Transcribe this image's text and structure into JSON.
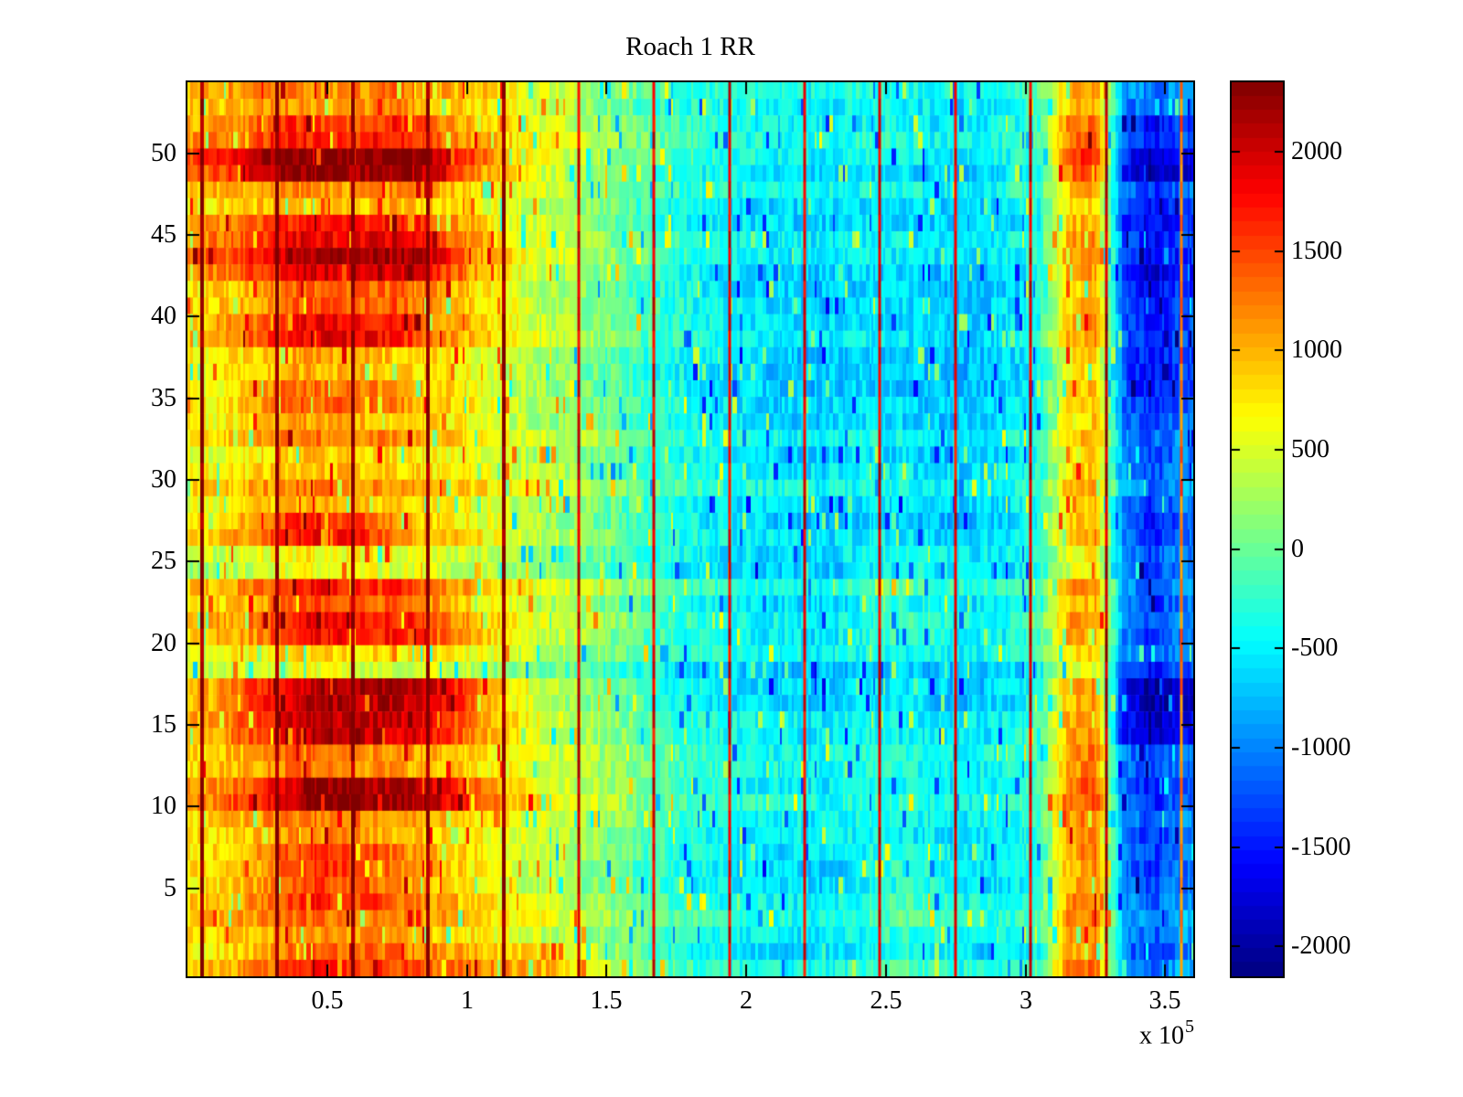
{
  "figure": {
    "window_background": "#ffffff",
    "axis_color": "#000000"
  },
  "chart_data": {
    "type": "heatmap",
    "title": "Roach 1 RR",
    "colormap": "jet",
    "x_axis": {
      "range": [
        0,
        360000
      ],
      "tick_values": [
        50000,
        100000,
        150000,
        200000,
        250000,
        300000,
        350000
      ],
      "tick_labels": [
        "0.5",
        "1",
        "1.5",
        "2",
        "2.5",
        "3",
        "3.5"
      ],
      "multiplier_label": "x 10",
      "multiplier_exponent": "5"
    },
    "y_axis": {
      "rows": 54,
      "tick_values": [
        50,
        45,
        40,
        35,
        30,
        25,
        20,
        15,
        10,
        5
      ],
      "tick_labels": [
        "50",
        "45",
        "40",
        "35",
        "30",
        "25",
        "20",
        "15",
        "10",
        "5"
      ]
    },
    "color_axis": {
      "min": -2150,
      "max": 2350,
      "levels": 64,
      "tick_values": [
        2000,
        1500,
        1000,
        500,
        0,
        -500,
        -1000,
        -1500,
        -2000
      ],
      "tick_labels": [
        "2000",
        "1500",
        "1000",
        "500",
        "0",
        "-500",
        "-1000",
        "-1500",
        "-2000"
      ]
    },
    "grid_info": {
      "bands_top_to_bottom": 27,
      "rows_per_band": 2,
      "cols": 36,
      "col_width_x": 10000
    },
    "grid": [
      [
        900,
        1000,
        1100,
        1200,
        1100,
        1000,
        1100,
        1200,
        1000,
        900,
        800,
        600,
        450,
        300,
        150,
        0,
        -150,
        -250,
        -350,
        -400,
        -450,
        -500,
        -500,
        -450,
        -400,
        -450,
        -500,
        -550,
        -500,
        -400,
        -200,
        900,
        1100,
        -900,
        -1200,
        -1000
      ],
      [
        1000,
        1100,
        1300,
        1600,
        1500,
        1400,
        1500,
        1600,
        1400,
        1100,
        900,
        700,
        500,
        350,
        200,
        50,
        -100,
        -250,
        -350,
        -450,
        -500,
        -550,
        -550,
        -500,
        -450,
        -500,
        -550,
        -600,
        -550,
        -450,
        -250,
        1100,
        1300,
        -1300,
        -1700,
        -1400
      ],
      [
        1400,
        1600,
        2000,
        2250,
        2300,
        2200,
        2250,
        2300,
        2100,
        1800,
        1200,
        800,
        550,
        400,
        250,
        100,
        -100,
        -250,
        -350,
        -450,
        -500,
        -550,
        -600,
        -550,
        -500,
        -550,
        -600,
        -650,
        -600,
        -500,
        -300,
        1300,
        1600,
        -1500,
        -2000,
        -1700
      ],
      [
        800,
        900,
        1000,
        1100,
        1000,
        950,
        1000,
        1100,
        950,
        850,
        700,
        550,
        400,
        300,
        180,
        30,
        -150,
        -300,
        -400,
        -450,
        -500,
        -550,
        -550,
        -500,
        -450,
        -500,
        -550,
        -600,
        -550,
        -450,
        -250,
        800,
        1000,
        -1100,
        -1500,
        -1200
      ],
      [
        1200,
        1300,
        1500,
        1800,
        1900,
        1800,
        1850,
        1900,
        1700,
        1300,
        1000,
        750,
        550,
        380,
        230,
        80,
        -100,
        -250,
        -350,
        -420,
        -470,
        -520,
        -550,
        -500,
        -450,
        -500,
        -550,
        -600,
        -550,
        -450,
        -250,
        1000,
        1200,
        -1200,
        -1600,
        -1300
      ],
      [
        1300,
        1400,
        1700,
        2000,
        2150,
        2100,
        2150,
        2200,
        2000,
        1600,
        1100,
        800,
        580,
        420,
        260,
        100,
        -80,
        -240,
        -340,
        -420,
        -470,
        -520,
        -560,
        -510,
        -460,
        -510,
        -560,
        -610,
        -560,
        -460,
        -260,
        1100,
        1300,
        -1300,
        -1700,
        -1400
      ],
      [
        900,
        1000,
        1200,
        1400,
        1500,
        1400,
        1450,
        1500,
        1300,
        1100,
        900,
        700,
        500,
        370,
        230,
        80,
        -100,
        -250,
        -350,
        -430,
        -480,
        -530,
        -570,
        -520,
        -470,
        -520,
        -570,
        -620,
        -570,
        -470,
        -270,
        900,
        1100,
        -1100,
        -1500,
        -1200
      ],
      [
        1000,
        1100,
        1400,
        1700,
        1950,
        1900,
        1800,
        1700,
        1400,
        1100,
        900,
        700,
        500,
        360,
        220,
        70,
        -110,
        -260,
        -360,
        -440,
        -490,
        -540,
        -580,
        -530,
        -480,
        -530,
        -580,
        -630,
        -580,
        -480,
        -280,
        1000,
        1200,
        -1150,
        -1550,
        -1250
      ],
      [
        800,
        900,
        1000,
        1150,
        1200,
        1150,
        1100,
        1050,
        950,
        850,
        700,
        550,
        400,
        300,
        180,
        30,
        -140,
        -290,
        -380,
        -460,
        -510,
        -550,
        -590,
        -540,
        -490,
        -540,
        -590,
        -640,
        -590,
        -490,
        -290,
        800,
        1000,
        -1050,
        -1450,
        -1150
      ],
      [
        800,
        900,
        1100,
        1400,
        1500,
        1450,
        1400,
        1250,
        1050,
        900,
        750,
        580,
        420,
        300,
        180,
        40,
        -130,
        -280,
        -370,
        -450,
        -500,
        -540,
        -580,
        -530,
        -480,
        -530,
        -580,
        -630,
        -580,
        -480,
        -280,
        900,
        1100,
        -1000,
        -1400,
        -1100
      ],
      [
        700,
        800,
        950,
        1100,
        1150,
        1100,
        1050,
        1000,
        900,
        800,
        650,
        500,
        360,
        250,
        140,
        0,
        -170,
        -310,
        -400,
        -470,
        -520,
        -560,
        -600,
        -550,
        -500,
        -550,
        -600,
        -650,
        -600,
        -500,
        -300,
        750,
        950,
        -1000,
        -1350,
        -1050
      ],
      [
        600,
        700,
        800,
        900,
        950,
        900,
        870,
        850,
        780,
        700,
        580,
        450,
        330,
        220,
        110,
        -30,
        -190,
        -330,
        -410,
        -480,
        -530,
        -570,
        -610,
        -560,
        -510,
        -560,
        -610,
        -660,
        -610,
        -510,
        -310,
        700,
        900,
        -950,
        -1300,
        -1000
      ],
      [
        650,
        750,
        900,
        1050,
        1100,
        1050,
        1000,
        950,
        850,
        750,
        620,
        480,
        350,
        240,
        130,
        -10,
        -180,
        -320,
        -400,
        -470,
        -520,
        -560,
        -600,
        -550,
        -500,
        -550,
        -600,
        -650,
        -600,
        -500,
        -300,
        750,
        950,
        -950,
        -1300,
        -1000
      ],
      [
        900,
        1000,
        1300,
        1700,
        1850,
        1750,
        1600,
        1300,
        1050,
        900,
        750,
        600,
        440,
        320,
        200,
        50,
        -120,
        -270,
        -360,
        -440,
        -490,
        -530,
        -570,
        -520,
        -470,
        -520,
        -570,
        -620,
        -570,
        -470,
        -270,
        950,
        1150,
        -1000,
        -1400,
        -1100
      ],
      [
        400,
        500,
        600,
        700,
        750,
        700,
        680,
        650,
        600,
        550,
        450,
        350,
        240,
        140,
        40,
        -90,
        -230,
        -360,
        -430,
        -500,
        -540,
        -570,
        -590,
        -520,
        -350,
        -250,
        -300,
        -450,
        -500,
        -420,
        -220,
        600,
        800,
        -900,
        -1250,
        -950
      ],
      [
        800,
        900,
        1100,
        1400,
        1600,
        1550,
        1500,
        1450,
        1300,
        1000,
        800,
        620,
        460,
        330,
        210,
        60,
        -110,
        -260,
        -350,
        -430,
        -470,
        -510,
        -550,
        -480,
        -330,
        -230,
        -280,
        -430,
        -490,
        -410,
        -210,
        900,
        1100,
        -950,
        -1300,
        -1000
      ],
      [
        900,
        1000,
        1200,
        1600,
        1800,
        1750,
        1700,
        1650,
        1500,
        1200,
        900,
        700,
        510,
        370,
        240,
        90,
        -90,
        -240,
        -340,
        -420,
        -460,
        -500,
        -540,
        -470,
        -320,
        -220,
        -270,
        -420,
        -480,
        -400,
        -200,
        1000,
        1200,
        -1000,
        -1350,
        -1050
      ],
      [
        400,
        480,
        580,
        680,
        720,
        690,
        660,
        630,
        580,
        520,
        420,
        320,
        210,
        110,
        10,
        -120,
        -250,
        -380,
        -450,
        -520,
        -550,
        -580,
        -610,
        -550,
        -470,
        -510,
        -570,
        -630,
        -590,
        -490,
        -290,
        550,
        750,
        -1000,
        -1400,
        -1100
      ],
      [
        1100,
        1300,
        1700,
        2000,
        2300,
        2350,
        2300,
        2250,
        2200,
        1900,
        1400,
        900,
        620,
        440,
        270,
        100,
        -90,
        -240,
        -330,
        -410,
        -450,
        -500,
        -540,
        -480,
        -400,
        -440,
        -510,
        -570,
        -530,
        -430,
        -230,
        1100,
        1300,
        -1400,
        -1900,
        -1600
      ],
      [
        1000,
        1200,
        1500,
        1800,
        2100,
        2050,
        2000,
        1950,
        1800,
        1500,
        1100,
        800,
        560,
        400,
        250,
        90,
        -100,
        -250,
        -340,
        -430,
        -470,
        -520,
        -560,
        -500,
        -420,
        -460,
        -530,
        -590,
        -550,
        -450,
        -250,
        1000,
        1200,
        -1500,
        -2000,
        -1700
      ],
      [
        700,
        800,
        950,
        1100,
        1150,
        1100,
        1050,
        1000,
        900,
        800,
        650,
        510,
        380,
        270,
        160,
        20,
        -150,
        -300,
        -380,
        -450,
        -490,
        -530,
        -570,
        -510,
        -430,
        -470,
        -540,
        -600,
        -560,
        -460,
        -260,
        950,
        1150,
        -1100,
        -1500,
        -1200
      ],
      [
        1000,
        1200,
        1500,
        1900,
        2200,
        2250,
        2200,
        2100,
        2000,
        1700,
        1200,
        850,
        600,
        430,
        270,
        110,
        -80,
        -230,
        -330,
        -420,
        -460,
        -510,
        -550,
        -490,
        -410,
        -450,
        -520,
        -580,
        -540,
        -440,
        -240,
        1200,
        1400,
        -1200,
        -1600,
        -1300
      ],
      [
        750,
        850,
        1000,
        1150,
        1200,
        1150,
        1100,
        1050,
        950,
        850,
        700,
        550,
        420,
        310,
        200,
        50,
        -120,
        -270,
        -360,
        -440,
        -480,
        -520,
        -560,
        -500,
        -420,
        -460,
        -530,
        -590,
        -550,
        -450,
        -250,
        1000,
        1200,
        -1000,
        -1400,
        -1100
      ],
      [
        850,
        950,
        1150,
        1500,
        1700,
        1650,
        1550,
        1350,
        1100,
        950,
        780,
        620,
        470,
        350,
        230,
        80,
        -100,
        -250,
        -340,
        -430,
        -470,
        -510,
        -550,
        -480,
        -300,
        -180,
        -230,
        -400,
        -480,
        -400,
        -200,
        1100,
        1300,
        -950,
        -1300,
        -1000
      ],
      [
        850,
        950,
        1150,
        1450,
        1600,
        1550,
        1500,
        1300,
        1080,
        930,
        760,
        600,
        450,
        340,
        220,
        70,
        -110,
        -260,
        -350,
        -440,
        -480,
        -520,
        -560,
        -490,
        -310,
        -190,
        -240,
        -410,
        -490,
        -410,
        -210,
        1050,
        1250,
        -900,
        -1250,
        -950
      ],
      [
        750,
        850,
        1000,
        1150,
        1200,
        1150,
        1100,
        1050,
        950,
        850,
        700,
        560,
        430,
        320,
        210,
        60,
        -110,
        -260,
        -350,
        -440,
        -480,
        -520,
        -560,
        -490,
        -320,
        -200,
        -250,
        -420,
        -500,
        -420,
        -220,
        1000,
        1200,
        -850,
        -1200,
        -900
      ],
      [
        800,
        900,
        1100,
        1400,
        1550,
        1500,
        1450,
        1400,
        1300,
        1200,
        1100,
        1000,
        900,
        750,
        550,
        250,
        -50,
        -250,
        -350,
        -430,
        -470,
        -510,
        -550,
        -480,
        -320,
        -210,
        -260,
        -430,
        -500,
        -420,
        -220,
        1050,
        1250,
        -900,
        -1250,
        -950
      ]
    ],
    "event_lines": {
      "x_values": [
        5200,
        32200,
        59200,
        86200,
        113200,
        140000,
        166900,
        194000,
        220900,
        247700,
        274900,
        301700,
        328900,
        355700
      ],
      "base_values": [
        2350,
        2350,
        2300,
        2300,
        2350,
        1950,
        1900,
        1900,
        1900,
        1950,
        1900,
        1950,
        2100,
        1300
      ],
      "wide_count": 5
    },
    "texture": {
      "stripe_noise": 260,
      "row_noise": 160,
      "spike_noise": 800,
      "spike_prob": 0.035
    }
  }
}
